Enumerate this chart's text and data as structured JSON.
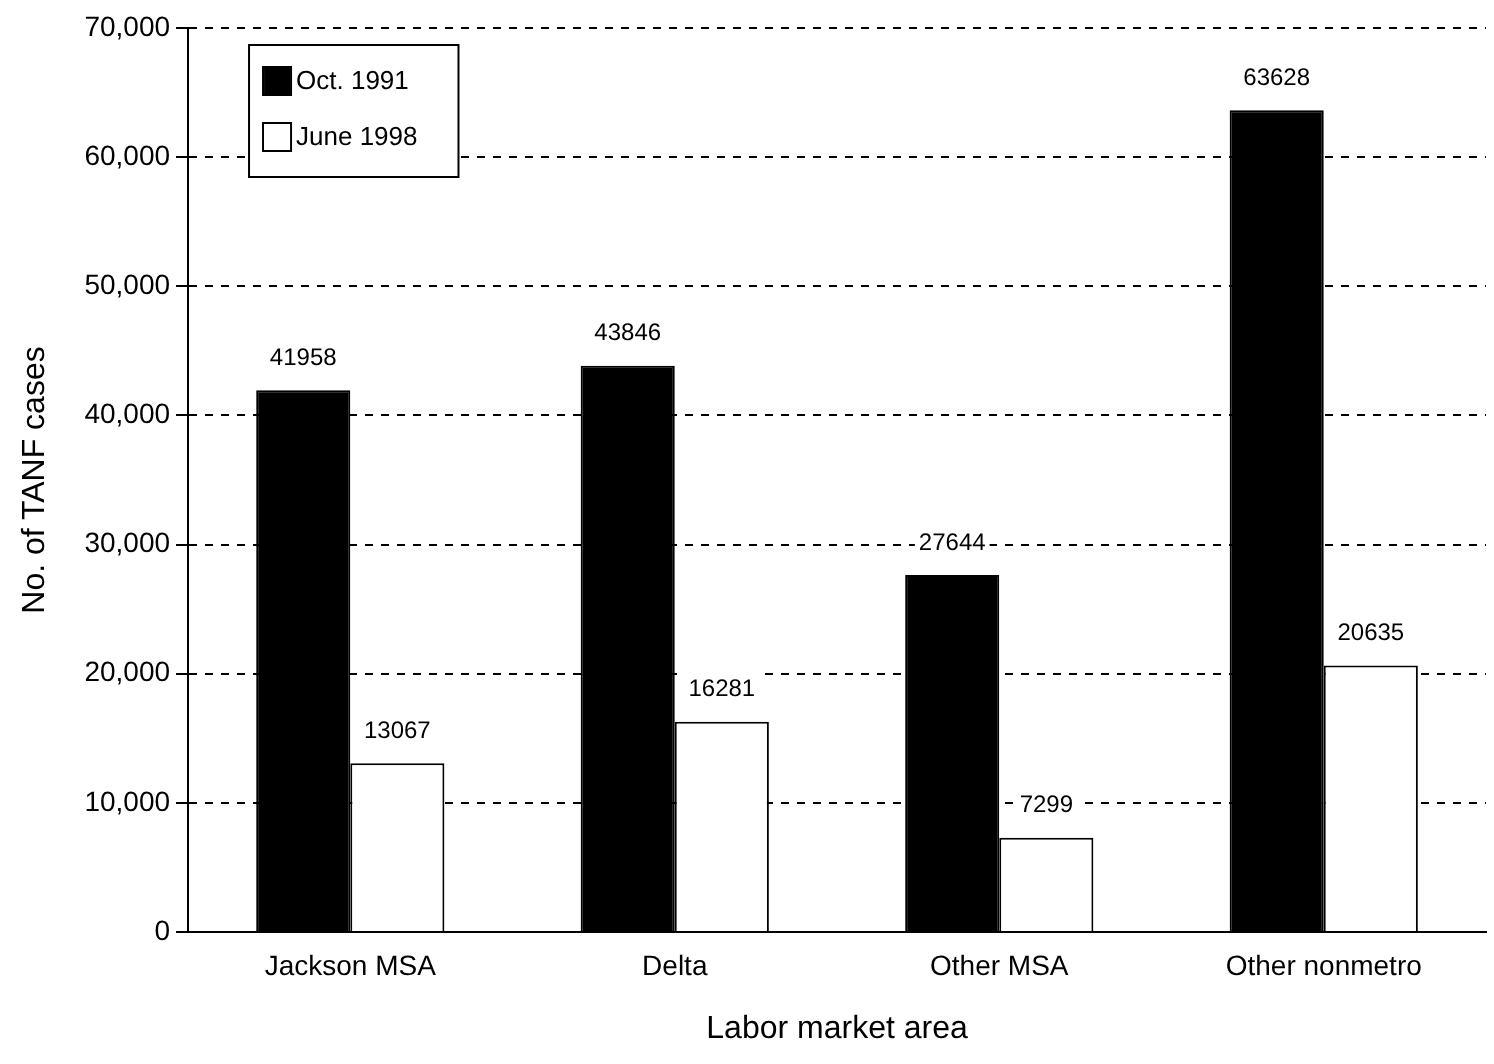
{
  "chart_data": {
    "type": "bar",
    "xlabel": "Labor market area",
    "ylabel": "No. of TANF cases",
    "categories": [
      "Jackson MSA",
      "Delta",
      "Other MSA",
      "Other nonmetro"
    ],
    "series": [
      {
        "name": "Oct. 1991",
        "color": "#000000",
        "values": [
          41958,
          43846,
          27644,
          63628
        ]
      },
      {
        "name": "June 1998",
        "color": "#ffffff",
        "values": [
          13067,
          16281,
          7299,
          20635
        ]
      }
    ],
    "ylim": [
      0,
      70000
    ],
    "yticks": [
      {
        "value": 0,
        "label": "0"
      },
      {
        "value": 10000,
        "label": "10,000"
      },
      {
        "value": 20000,
        "label": "20,000"
      },
      {
        "value": 30000,
        "label": "30,000"
      },
      {
        "value": 40000,
        "label": "40,000"
      },
      {
        "value": 50000,
        "label": "50,000"
      },
      {
        "value": 60000,
        "label": "60,000"
      },
      {
        "value": 70000,
        "label": "70,000"
      }
    ],
    "grid": "y",
    "line_style": "dashed",
    "legend": "top left",
    "data_labels": true
  }
}
